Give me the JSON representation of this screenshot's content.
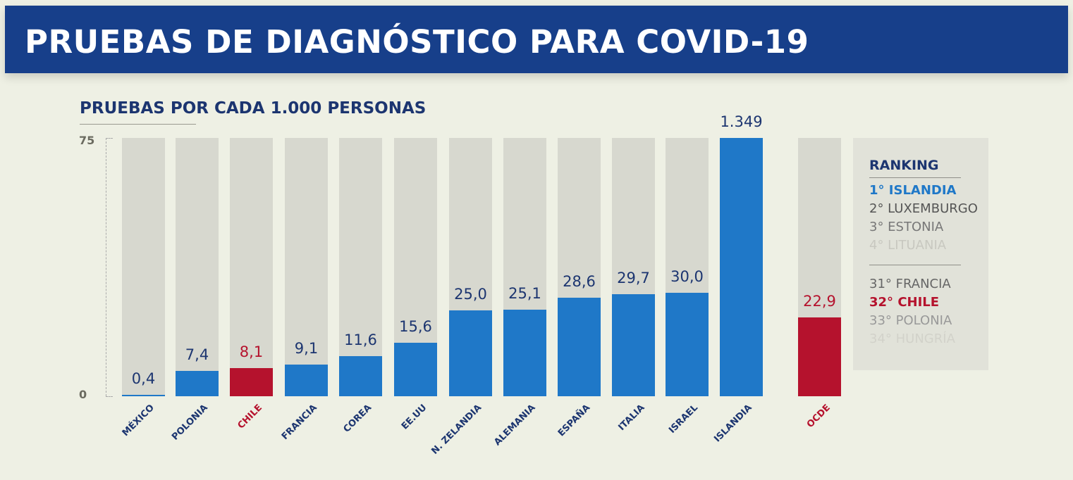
{
  "header": {
    "title": "PRUEBAS DE DIAGNÓSTICO PARA COVID-19"
  },
  "colors": {
    "blue": "#1f78c8",
    "red": "#b5122d",
    "navy": "#1c3570",
    "track": "#d7d8cf"
  },
  "chart_data": {
    "type": "bar",
    "title": "PRUEBAS POR CADA 1.000 PERSONAS",
    "ylim": [
      0,
      75
    ],
    "yticks": [
      "0",
      "75"
    ],
    "categories": [
      "MÉXICO",
      "POLONIA",
      "CHILE",
      "FRANCIA",
      "COREA",
      "EE.UU",
      "N. ZELANDIA",
      "ALEMANIA",
      "ESPAÑA",
      "ITALIA",
      "ISRAEL",
      "ISLANDIA",
      "OCDE"
    ],
    "values": [
      0.4,
      7.4,
      8.1,
      9.1,
      11.6,
      15.6,
      25.0,
      25.1,
      28.6,
      29.7,
      30.0,
      1349,
      22.9
    ],
    "value_labels": [
      "0,4",
      "7,4",
      "8,1",
      "9,1",
      "11,6",
      "15,6",
      "25,0",
      "25,1",
      "28,6",
      "29,7",
      "30,0",
      "1.349",
      "22,9"
    ],
    "highlight": [
      "normal",
      "normal",
      "red",
      "normal",
      "normal",
      "normal",
      "normal",
      "normal",
      "normal",
      "normal",
      "normal",
      "normal",
      "red"
    ]
  },
  "ranking": {
    "title": "RANKING",
    "top": [
      "1° ISLANDIA",
      "2° LUXEMBURGO",
      "3° ESTONIA",
      "4° LITUANIA"
    ],
    "bottom": [
      "31° FRANCIA",
      "32° CHILE",
      "33° POLONIA",
      "34° HUNGRÍA"
    ]
  }
}
